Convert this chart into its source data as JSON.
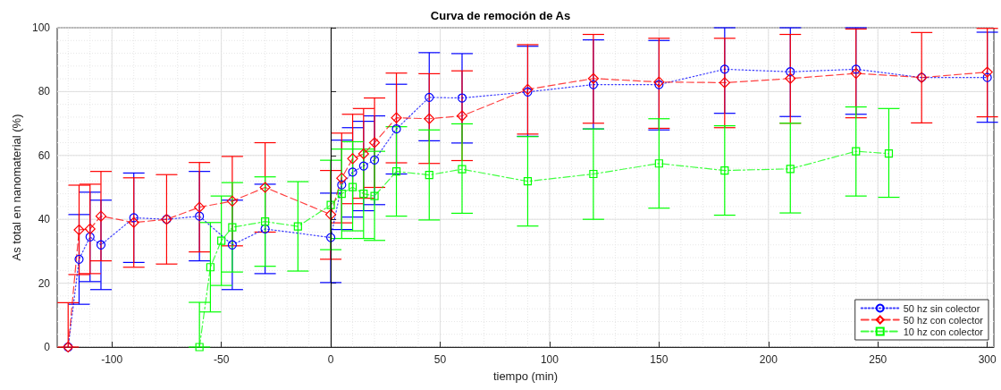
{
  "chart_data": {
    "type": "line",
    "title": "Curva de remoción de As",
    "xlabel": "tiempo (min)",
    "ylabel": "As total en nanomaterial (%)",
    "xlim": [
      -125,
      303
    ],
    "xticks": [
      -100,
      -50,
      0,
      50,
      100,
      150,
      200,
      250,
      300
    ],
    "ylim": [
      0,
      100
    ],
    "yticks": [
      0,
      20,
      40,
      60,
      80,
      100
    ],
    "grid": true,
    "legend": "bottom right",
    "ref_lines": [
      {
        "axis": "x",
        "value": 0,
        "color": "#000000"
      }
    ],
    "series": [
      {
        "name": "50 hz sin colector",
        "color": "#0000ff",
        "marker": "circle",
        "line_style": "dotted",
        "x": [
          -120,
          -115,
          -110,
          -105,
          -90,
          -75,
          -60,
          -45,
          -30,
          0,
          5,
          10,
          15,
          20,
          30,
          45,
          60,
          90,
          120,
          150,
          180,
          210,
          240,
          270,
          300
        ],
        "values": [
          0,
          27.5,
          34.5,
          32,
          40.5,
          40,
          41,
          32,
          37,
          34.3,
          50.8,
          54.8,
          56.7,
          58.6,
          68.3,
          78.2,
          78,
          79.9,
          82.2,
          82.2,
          87,
          86.2,
          87,
          84.4,
          84.4
        ],
        "errors": [
          null,
          [
            13.4,
            41.5
          ],
          [
            20.5,
            48.5
          ],
          [
            18,
            46
          ],
          [
            26.5,
            54.5
          ],
          null,
          [
            27,
            55
          ],
          [
            18,
            46
          ],
          [
            23,
            51
          ],
          [
            20.2,
            48.2
          ],
          [
            36.8,
            64.8
          ],
          [
            40.7,
            68.7
          ],
          [
            42.7,
            70.7
          ],
          [
            44.6,
            72.4
          ],
          [
            54.2,
            82.3
          ],
          [
            64.6,
            92.2
          ],
          [
            63.9,
            91.9
          ],
          [
            66,
            94.2
          ],
          [
            68.3,
            96.2
          ],
          [
            68,
            96
          ],
          [
            73.2,
            100
          ],
          [
            72.2,
            100
          ],
          [
            72.9,
            100
          ],
          null,
          [
            70.4,
            98.6
          ]
        ]
      },
      {
        "name": "50 hz con colector",
        "color": "#ff0000",
        "marker": "diamond",
        "line_style": "dashed",
        "x": [
          -120,
          -115,
          -110,
          -105,
          -90,
          -75,
          -60,
          -45,
          -30,
          0,
          5,
          10,
          15,
          20,
          30,
          45,
          60,
          90,
          120,
          150,
          180,
          210,
          240,
          270,
          300
        ],
        "values": [
          0,
          36.7,
          37,
          41,
          39,
          40,
          43.8,
          45.7,
          50,
          41.5,
          52.9,
          59,
          60.5,
          64,
          71.8,
          71.5,
          72.4,
          80.7,
          84.1,
          83,
          82.8,
          84.1,
          85.7,
          84.4,
          86.1
        ],
        "errors": [
          [
            0,
            13.9
          ],
          [
            22.7,
            50.7
          ],
          [
            23,
            51
          ],
          [
            27,
            55
          ],
          [
            25,
            53
          ],
          [
            26,
            54
          ],
          [
            29.8,
            57.8
          ],
          [
            31.7,
            59.7
          ],
          [
            36,
            64
          ],
          [
            27.5,
            55.3
          ],
          [
            38.9,
            67
          ],
          [
            44.9,
            72.9
          ],
          [
            46.6,
            74.7
          ],
          [
            50,
            78
          ],
          [
            57.7,
            85.8
          ],
          [
            57.5,
            85.6
          ],
          [
            58.4,
            86.5
          ],
          [
            66.7,
            94.7
          ],
          [
            70.1,
            97.9
          ],
          [
            68.5,
            96.7
          ],
          [
            68.7,
            96.7
          ],
          [
            70.1,
            97.9
          ],
          [
            71.8,
            99.6
          ],
          [
            70.2,
            98.5
          ],
          [
            72.1,
            99.8
          ]
        ]
      },
      {
        "name": "10 hz con colector",
        "color": "#00ff00",
        "marker": "square",
        "line_style": "dashdot",
        "x": [
          -60,
          -55,
          -50,
          -45,
          -30,
          -15,
          0,
          5,
          10,
          15,
          20,
          30,
          45,
          60,
          90,
          120,
          150,
          180,
          210,
          240,
          255
        ],
        "values": [
          0,
          25,
          33.3,
          37.5,
          39.3,
          37.8,
          44.5,
          48,
          50.1,
          48,
          47.3,
          55,
          53.9,
          55.7,
          51.9,
          54.2,
          57.5,
          55.3,
          55.8,
          61.3,
          60.6
        ],
        "errors": [
          [
            0,
            14
          ],
          [
            11,
            39
          ],
          [
            19.3,
            47.3
          ],
          [
            23.5,
            51.5
          ],
          [
            25.3,
            53.3
          ],
          [
            23.8,
            51.8
          ],
          [
            30.5,
            58.5
          ],
          [
            34,
            62
          ],
          [
            36.4,
            64.3
          ],
          [
            34,
            62
          ],
          [
            33.4,
            61.3
          ],
          [
            41,
            69
          ],
          [
            39.8,
            68
          ],
          [
            41.9,
            69.9
          ],
          [
            37.9,
            65.9
          ],
          [
            40,
            68.3
          ],
          [
            43.5,
            71.5
          ],
          [
            41.3,
            69.3
          ],
          [
            42,
            70.1
          ],
          [
            47.3,
            75.2
          ],
          [
            46.9,
            74.7
          ]
        ]
      }
    ]
  }
}
